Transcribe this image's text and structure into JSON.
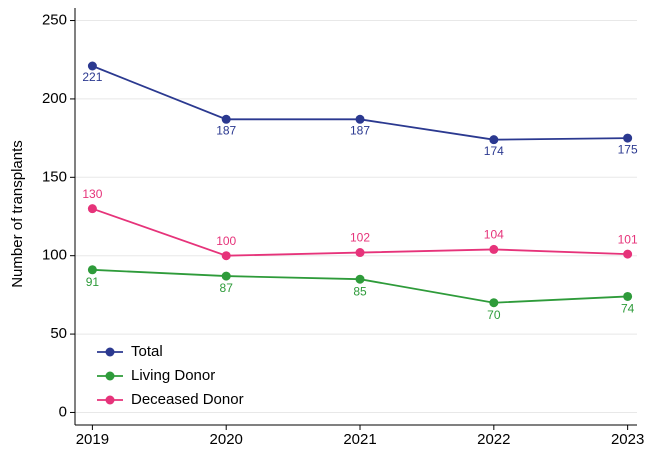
{
  "chart_data": {
    "type": "line",
    "y_label": "Number of transplants",
    "x": [
      2019,
      2020,
      2021,
      2022,
      2023
    ],
    "xlim": [
      2018.87,
      2023.07
    ],
    "xticks": [
      2019,
      2020,
      2021,
      2022,
      2023
    ],
    "ylim": [
      -8,
      258
    ],
    "yticks": [
      0,
      50,
      100,
      150,
      200,
      250
    ],
    "grid": true,
    "legend": "lower left",
    "series": [
      {
        "name": "Total",
        "color": "#2b3990",
        "values": [
          221,
          187,
          187,
          174,
          175
        ]
      },
      {
        "name": "Living Donor",
        "color": "#2e9b3a",
        "values": [
          91,
          87,
          85,
          70,
          74
        ]
      },
      {
        "name": "Deceased Donor",
        "color": "#e6337a",
        "values": [
          130,
          100,
          102,
          104,
          101
        ]
      }
    ]
  }
}
